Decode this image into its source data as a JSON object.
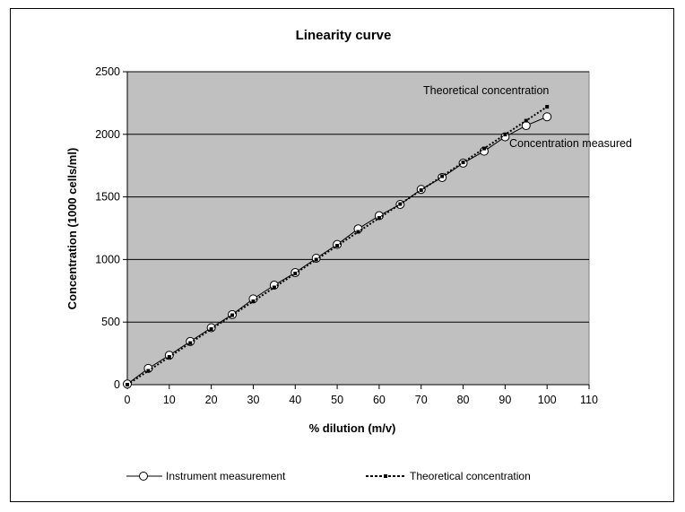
{
  "chart_data": {
    "type": "line",
    "title": "Linearity curve",
    "xlabel": "% dilution (m/v)",
    "ylabel": "Concentration (1000 cells/ml)",
    "xlim": [
      0,
      110
    ],
    "ylim": [
      0,
      2500
    ],
    "x_ticks": [
      0,
      10,
      20,
      30,
      40,
      50,
      60,
      70,
      80,
      90,
      100,
      110
    ],
    "y_ticks": [
      0,
      500,
      1000,
      1500,
      2000,
      2500
    ],
    "grid": "horizontal",
    "plot_background": "#c0c0c0",
    "legend_position": "bottom",
    "series": [
      {
        "name": "Instrument measurement",
        "style": "solid-line-open-circle",
        "color": "#000000",
        "x": [
          0,
          5,
          10,
          15,
          20,
          25,
          30,
          35,
          40,
          45,
          50,
          55,
          60,
          65,
          70,
          75,
          80,
          85,
          90,
          95,
          100
        ],
        "y": [
          5,
          130,
          235,
          345,
          455,
          560,
          685,
          795,
          895,
          1010,
          1120,
          1245,
          1350,
          1440,
          1560,
          1655,
          1770,
          1865,
          1980,
          2070,
          2140
        ]
      },
      {
        "name": "Theoretical concentration",
        "style": "dotted-line-small-square",
        "color": "#000000",
        "x": [
          0,
          5,
          10,
          15,
          20,
          25,
          30,
          35,
          40,
          45,
          50,
          55,
          60,
          65,
          70,
          75,
          80,
          85,
          90,
          95,
          100
        ],
        "y": [
          0,
          111,
          222,
          333,
          444,
          555,
          666,
          777,
          888,
          999,
          1110,
          1221,
          1332,
          1443,
          1554,
          1665,
          1776,
          1887,
          1998,
          2109,
          2220
        ]
      }
    ],
    "annotations": [
      {
        "text": "Theoretical concentration",
        "series": "Theoretical concentration"
      },
      {
        "text": "Concentration measured",
        "series": "Instrument measurement"
      }
    ]
  }
}
